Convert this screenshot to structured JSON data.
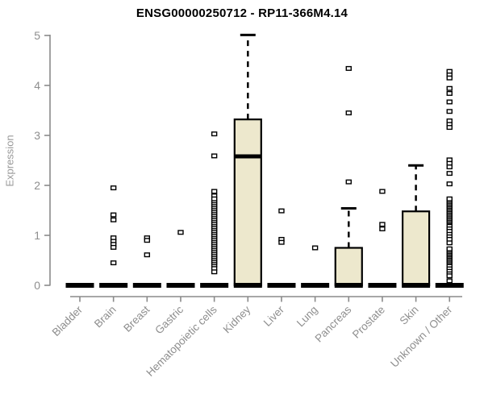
{
  "chart_data": {
    "type": "boxplot",
    "title": "ENSG00000250712 - RP11-366M4.14",
    "xlabel": "",
    "ylabel": "Expression",
    "ylim": [
      0,
      5
    ],
    "yticks": [
      0,
      1,
      2,
      3,
      4,
      5
    ],
    "grid": false,
    "legend": "none",
    "colors": {
      "box_fill": "#EDE8CD",
      "box_stroke": "#000000",
      "median": "#000000",
      "whisker": "#000000",
      "axis": "#8a8a8a",
      "tick_label": "#8e8e8e",
      "title": "#000000",
      "ylabel": "#999999",
      "background": "#ffffff"
    },
    "categories": [
      "Bladder",
      "Brain",
      "Breast",
      "Gastric",
      "Hematopoietic cells",
      "Kidney",
      "Liver",
      "Lung",
      "Pancreas",
      "Prostate",
      "Skin",
      "Unknown / Other"
    ],
    "series": [
      {
        "category": "Bladder",
        "low": 0,
        "q1": 0,
        "median": 0,
        "q3": 0,
        "high": 0,
        "outliers": [],
        "outlier_bands": []
      },
      {
        "category": "Brain",
        "low": 0,
        "q1": 0,
        "median": 0,
        "q3": 0,
        "high": 0,
        "outliers": [
          1.95,
          1.41,
          1.31,
          0.95,
          0.88,
          0.82,
          0.76,
          0.45
        ],
        "outlier_bands": []
      },
      {
        "category": "Breast",
        "low": 0,
        "q1": 0,
        "median": 0,
        "q3": 0,
        "high": 0,
        "outliers": [
          0.95,
          0.9,
          0.61
        ],
        "outlier_bands": []
      },
      {
        "category": "Gastric",
        "low": 0,
        "q1": 0,
        "median": 0,
        "q3": 0,
        "high": 0,
        "outliers": [
          1.06
        ],
        "outlier_bands": []
      },
      {
        "category": "Hematopoietic cells",
        "low": 0,
        "q1": 0,
        "median": 0,
        "q3": 0,
        "high": 0,
        "outliers": [
          3.03,
          2.59,
          1.88,
          1.79,
          0.34,
          0.27
        ],
        "outlier_bands": [
          {
            "from": 0.41,
            "to": 1.73,
            "count": 34
          }
        ]
      },
      {
        "category": "Kidney",
        "low": 0,
        "q1": 0,
        "median": 2.58,
        "q3": 3.32,
        "high": 5.01,
        "outliers": [],
        "outlier_bands": []
      },
      {
        "category": "Liver",
        "low": 0,
        "q1": 0,
        "median": 0,
        "q3": 0,
        "high": 0,
        "outliers": [
          1.49,
          0.92,
          0.86
        ],
        "outlier_bands": []
      },
      {
        "category": "Lung",
        "low": 0,
        "q1": 0,
        "median": 0,
        "q3": 0,
        "high": 0,
        "outliers": [
          0.75
        ],
        "outlier_bands": []
      },
      {
        "category": "Pancreas",
        "low": 0,
        "q1": 0,
        "median": 0,
        "q3": 0.75,
        "high": 1.54,
        "outliers": [
          4.34,
          3.45,
          2.07
        ],
        "outlier_bands": []
      },
      {
        "category": "Prostate",
        "low": 0,
        "q1": 0,
        "median": 0,
        "q3": 0,
        "high": 0,
        "outliers": [
          1.88,
          1.22,
          1.13
        ],
        "outlier_bands": []
      },
      {
        "category": "Skin",
        "low": 0,
        "q1": 0,
        "median": 0,
        "q3": 1.48,
        "high": 2.4,
        "outliers": [],
        "outlier_bands": []
      },
      {
        "category": "Unknown / Other",
        "low": 0,
        "q1": 0,
        "median": 0,
        "q3": 0,
        "high": 0,
        "outliers": [
          4.28,
          4.21,
          4.15,
          3.94,
          3.84,
          3.67,
          3.48,
          3.29,
          3.22,
          3.16,
          2.51,
          2.44,
          2.37,
          2.24,
          2.03,
          1.18,
          1.13,
          1.08,
          1.02,
          0.97,
          0.92,
          0.85,
          0.38,
          0.33,
          0.28,
          0.23,
          0.19,
          0.09
        ],
        "outlier_bands": [
          {
            "from": 1.27,
            "to": 1.73,
            "count": 16
          },
          {
            "from": 0.46,
            "to": 0.73,
            "count": 10
          }
        ]
      }
    ]
  }
}
